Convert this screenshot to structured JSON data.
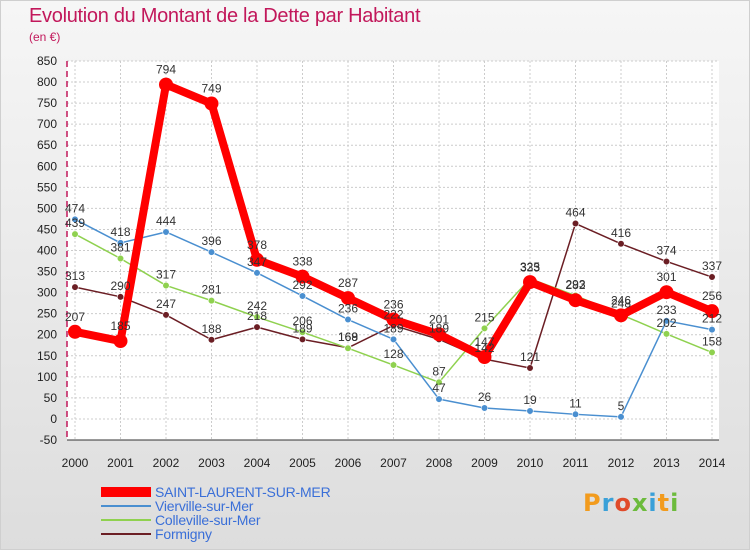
{
  "header": {
    "title": "Evolution du Montant de la Dette par Habitant",
    "unit": "(en €)"
  },
  "brand": {
    "text": "Proxiti"
  },
  "chart_data": {
    "type": "line",
    "title": "Evolution du Montant de la Dette par Habitant",
    "subtitle": "(en €)",
    "xlabel": "",
    "ylabel": "",
    "categories": [
      "2000",
      "2001",
      "2002",
      "2003",
      "2004",
      "2005",
      "2006",
      "2007",
      "2008",
      "2009",
      "2010",
      "2011",
      "2012",
      "2013",
      "2014"
    ],
    "ylim": [
      -50,
      850
    ],
    "yticks": [
      -50,
      0,
      50,
      100,
      150,
      200,
      250,
      300,
      350,
      400,
      450,
      500,
      550,
      600,
      650,
      700,
      750,
      800,
      850
    ],
    "grid": true,
    "legend_position": "bottom",
    "series": [
      {
        "name": "Formigny",
        "color": "#6b1e24",
        "values": [
          313,
          290,
          247,
          188,
          218,
          189,
          169,
          222,
          189,
          142,
          121,
          464,
          416,
          374,
          337
        ]
      },
      {
        "name": "Colleville-sur-Mer",
        "color": "#8fd14f",
        "values": [
          439,
          381,
          317,
          281,
          242,
          206,
          168,
          128,
          87,
          215,
          333,
          293,
          248,
          202,
          158
        ]
      },
      {
        "name": "Vierville-sur-Mer",
        "color": "#4a8fd0",
        "values": [
          474,
          418,
          444,
          396,
          347,
          292,
          236,
          189,
          47,
          26,
          19,
          11,
          5,
          233,
          212
        ]
      },
      {
        "name": "SAINT-LAURENT-SUR-MER",
        "color": "#ff0000",
        "values": [
          207,
          185,
          794,
          749,
          378,
          338,
          287,
          236,
          201,
          147,
          325,
          282,
          246,
          301,
          256
        ]
      }
    ]
  }
}
